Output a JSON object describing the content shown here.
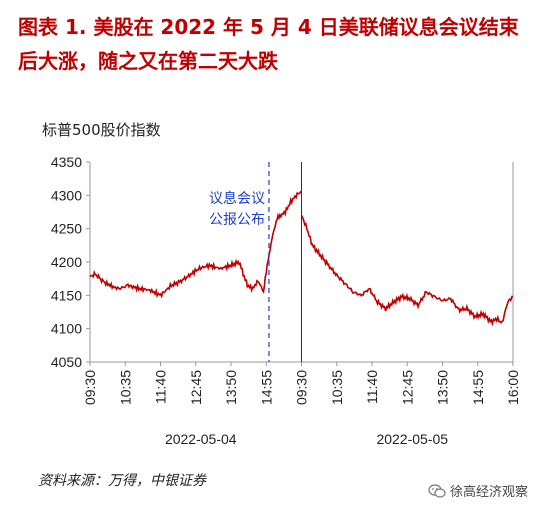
{
  "header": {
    "title_line1": "图表 1.  美股在 2022 年 5 月 4 日美联储议息会议结束",
    "title_line2": "后大涨，随之又在第二天大跌"
  },
  "source_note": "资料来源：万得，中银证券",
  "watermark": {
    "text": "徐高经济观察",
    "icon": "wechat-icon"
  },
  "chart_data": {
    "type": "line",
    "ylabel": "标普500股价指数",
    "ylim": [
      4050,
      4350
    ],
    "yticks": [
      4050,
      4100,
      4150,
      4200,
      4250,
      4300,
      4350
    ],
    "xticks": [
      "09:30",
      "10:35",
      "11:40",
      "12:45",
      "13:50",
      "14:55",
      "09:30",
      "10:35",
      "11:40",
      "12:45",
      "13:50",
      "14:55",
      "16:00"
    ],
    "dates": [
      "2022-05-04",
      "2022-05-05"
    ],
    "annotation": {
      "line1": "议息会议",
      "line2": "公报公布",
      "at_time": "2022-05-04 14:00"
    },
    "colors": {
      "series": "#c00000",
      "annotation": "#1f3ec9"
    },
    "series": [
      {
        "day1_time_minutes_since_open": [
          0,
          10,
          25,
          45,
          55,
          70,
          90,
          110,
          130,
          150,
          165,
          180,
          200,
          220,
          240,
          260,
          275,
          290,
          300,
          310,
          320,
          325,
          330,
          338,
          345,
          352,
          360,
          370,
          380,
          390
        ],
        "day1_values": [
          4178,
          4182,
          4170,
          4162,
          4160,
          4165,
          4160,
          4158,
          4150,
          4165,
          4170,
          4178,
          4190,
          4195,
          4190,
          4195,
          4200,
          4165,
          4160,
          4172,
          4155,
          4185,
          4210,
          4245,
          4265,
          4270,
          4275,
          4290,
          4300,
          4306
        ],
        "day2_time_minutes_since_open": [
          0,
          10,
          20,
          35,
          50,
          65,
          80,
          95,
          110,
          125,
          140,
          155,
          170,
          185,
          200,
          215,
          230,
          245,
          260,
          275,
          290,
          305,
          320,
          335,
          350,
          360,
          370,
          380,
          390
        ],
        "day2_values": [
          4270,
          4250,
          4225,
          4210,
          4195,
          4180,
          4168,
          4155,
          4150,
          4160,
          4140,
          4130,
          4140,
          4148,
          4145,
          4135,
          4155,
          4148,
          4142,
          4145,
          4128,
          4130,
          4118,
          4122,
          4110,
          4115,
          4108,
          4140,
          4148
        ]
      }
    ]
  }
}
